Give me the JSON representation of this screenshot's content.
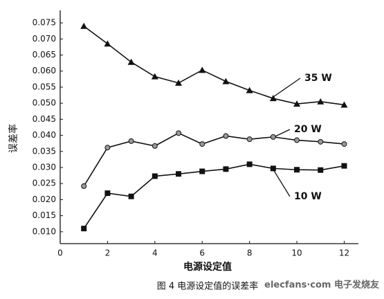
{
  "chart_data": {
    "type": "line",
    "x_label": "电源设定值",
    "y_label": "误差率",
    "caption": "图 4 电源设定值的误差率",
    "watermark": "elecfans·com 电子发烧友",
    "x": [
      1,
      2,
      3,
      4,
      5,
      6,
      7,
      8,
      9,
      10,
      11,
      12
    ],
    "series": [
      {
        "name": "35 W",
        "color": "#111111",
        "marker": "triangle",
        "values": [
          0.074,
          0.0685,
          0.0628,
          0.0583,
          0.0563,
          0.0603,
          0.0568,
          0.054,
          0.0515,
          0.0498,
          0.0505,
          0.0495
        ]
      },
      {
        "name": "20 W",
        "color": "#111111",
        "marker": "circle",
        "values": [
          0.0242,
          0.0362,
          0.0382,
          0.0367,
          0.0407,
          0.0373,
          0.0398,
          0.0388,
          0.0395,
          0.0385,
          0.038,
          0.0373
        ]
      },
      {
        "name": "10 W",
        "color": "#111111",
        "marker": "square",
        "values": [
          0.011,
          0.022,
          0.021,
          0.0273,
          0.028,
          0.0288,
          0.0295,
          0.031,
          0.0297,
          0.0293,
          0.0292,
          0.0305
        ]
      }
    ],
    "xlim": [
      0,
      12.6
    ],
    "xticks": [
      0,
      2,
      4,
      6,
      8,
      10,
      12
    ],
    "ylim": [
      0.0063,
      0.0789
    ],
    "yticks": [
      {
        "value": 0.01,
        "label": "0.010"
      },
      0.015,
      {
        "value": 0.02,
        "label": "0.020"
      },
      0.025,
      {
        "value": 0.03,
        "label": "0.030"
      },
      0.035,
      {
        "value": 0.04,
        "label": "0.040"
      },
      0.045,
      {
        "value": 0.05,
        "label": "0.050"
      },
      0.055,
      {
        "value": 0.06,
        "label": "0.060"
      },
      0.065,
      {
        "value": 0.07,
        "label": "0.070"
      },
      0.075
    ],
    "grid": false
  }
}
